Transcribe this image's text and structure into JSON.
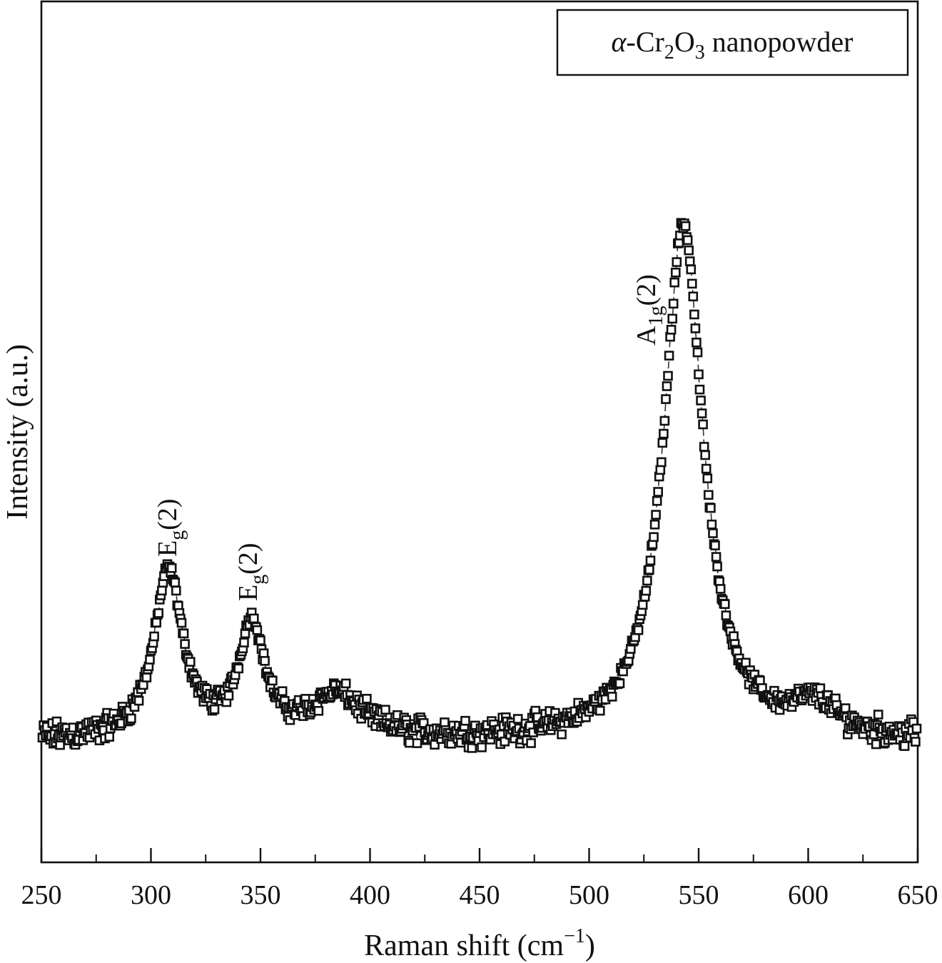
{
  "chart_data": {
    "type": "scatter",
    "xlabel": "Raman shift (cm",
    "xlabel_sup": "−1",
    "xlabel_close": ")",
    "ylabel": "Intensity (a.u.)",
    "xlim": [
      250,
      650
    ],
    "ylim": [
      0,
      1
    ],
    "x_major_ticks": [
      250,
      300,
      350,
      400,
      450,
      500,
      550,
      600,
      650
    ],
    "x_tick_labels": [
      "250",
      "300",
      "350",
      "400",
      "450",
      "500",
      "550",
      "600",
      "650"
    ],
    "x_minor_step": 25,
    "y_ticks_shown": false,
    "grid": false,
    "legend": {
      "placement": "top-right",
      "text_alpha": "α",
      "text_main": "-Cr",
      "text_sub1": "2",
      "text_mid": "O",
      "text_sub2": "3",
      "text_tail": " nanopowder"
    },
    "series_style": {
      "marker": "open-square",
      "color": "#111111"
    },
    "baseline": 0.14,
    "noise_amplitude": 0.022,
    "sample_step": 0.5,
    "peaks": [
      {
        "mode": "Eg(2)",
        "label_main": "E",
        "label_sub": "g",
        "label_tail": "(2)",
        "center": 308,
        "height": 0.195,
        "hwhm": 8
      },
      {
        "mode": "Eg(2)",
        "label_main": "E",
        "label_sub": "g",
        "label_tail": "(2)",
        "center": 346,
        "height": 0.13,
        "hwhm": 7
      },
      {
        "mode": "A1g(2)",
        "label_main": "A",
        "label_sub": "1g",
        "label_tail": "(2)",
        "center": 543,
        "height": 0.6,
        "hwhm": 11
      },
      {
        "mode": "shoulder",
        "center": 385,
        "height": 0.05,
        "hwhm": 14
      },
      {
        "mode": "shoulder",
        "center": 603,
        "height": 0.035,
        "hwhm": 12
      }
    ]
  }
}
